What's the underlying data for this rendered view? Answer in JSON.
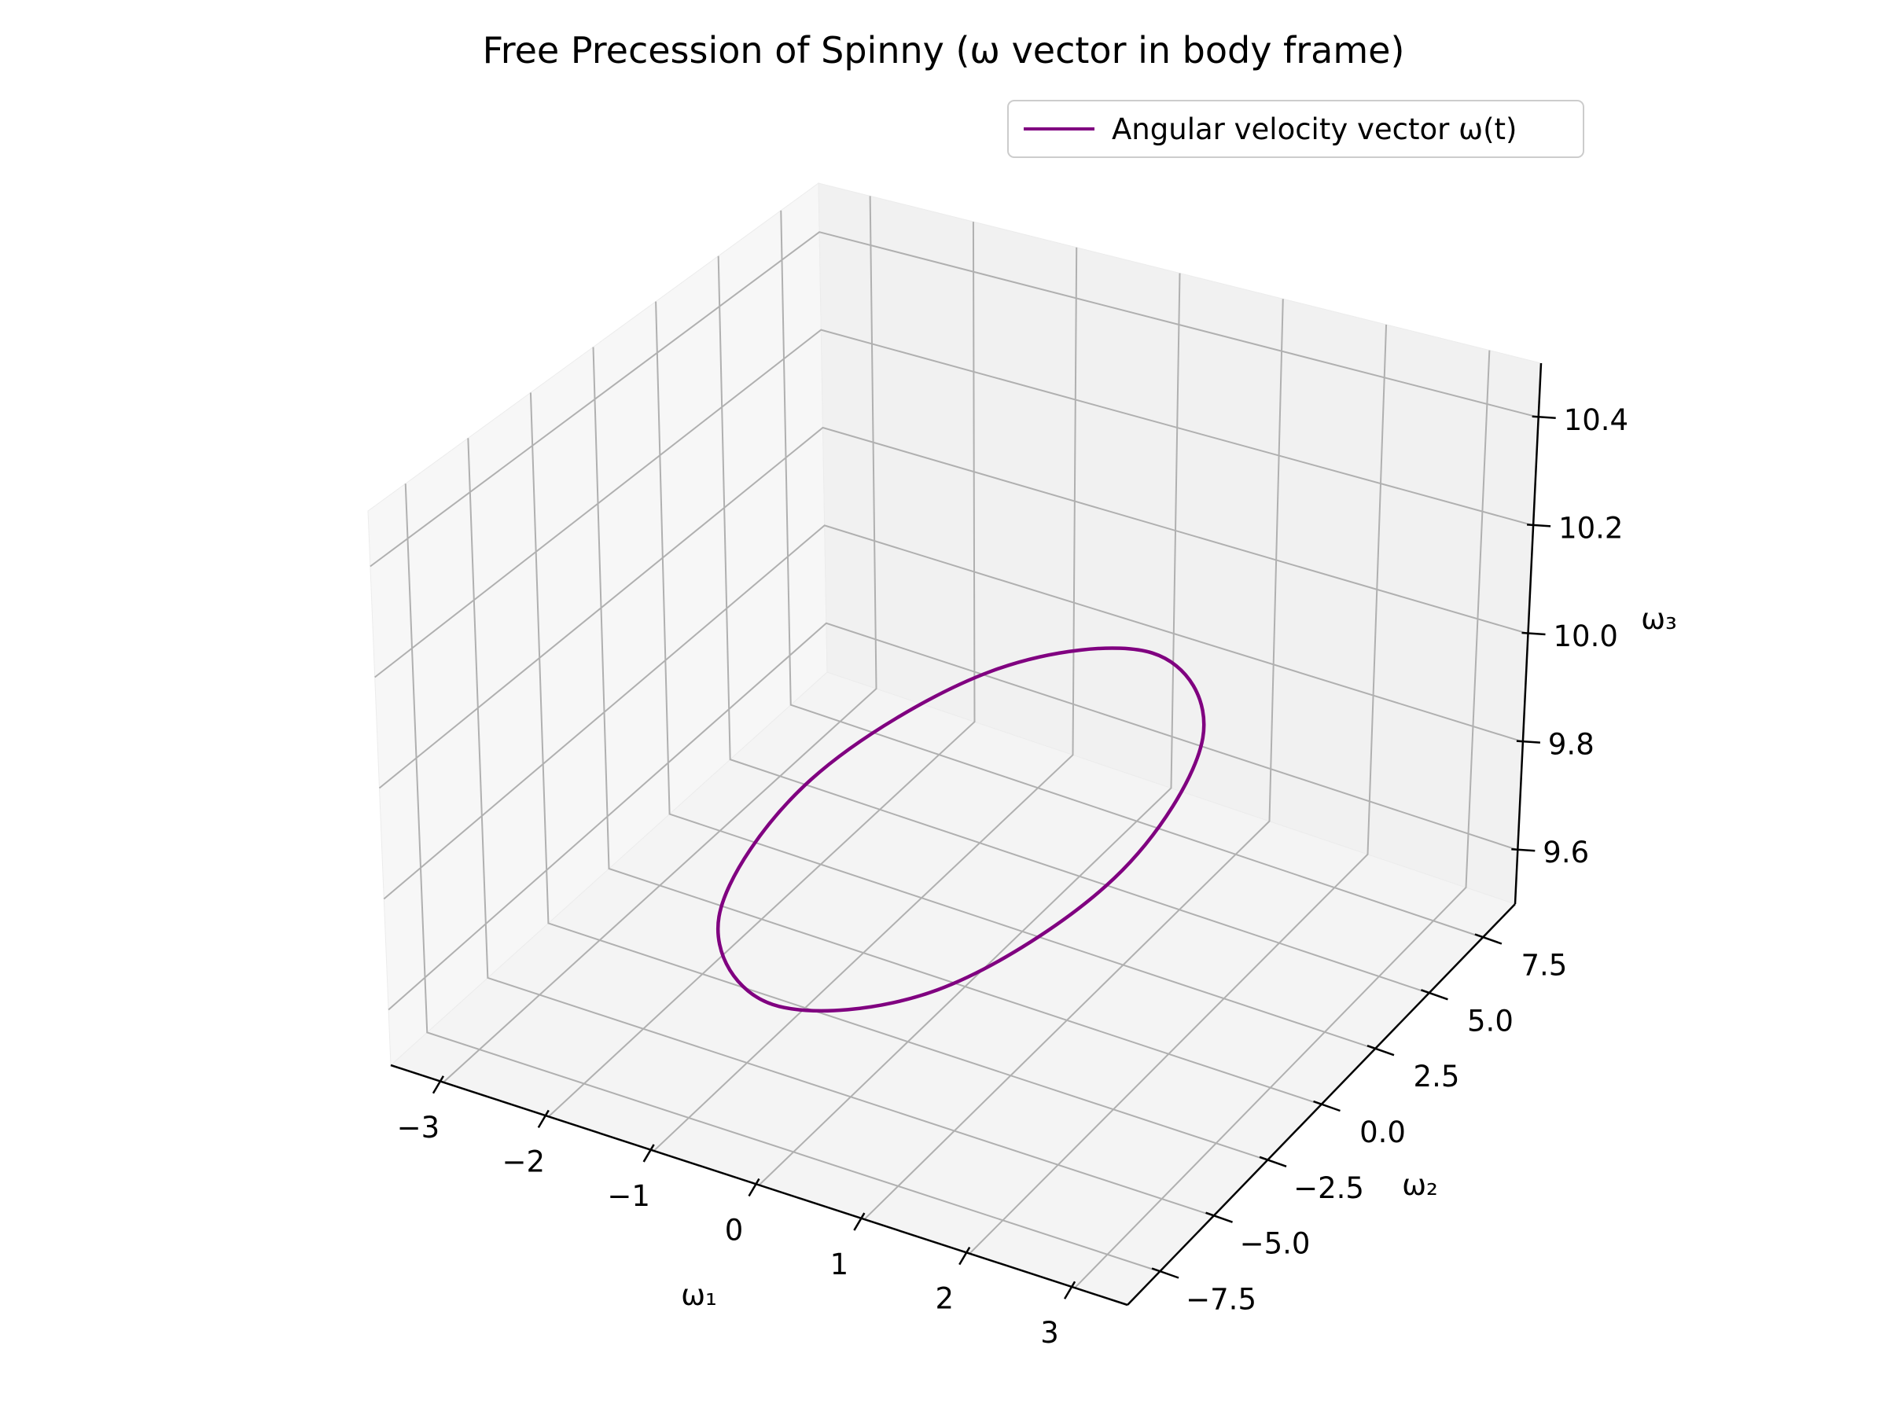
{
  "chart_data": {
    "type": "line",
    "projection": "3d",
    "title": "Free Precession of Spinny (ω vector in body frame)",
    "xlabel": "ω₁",
    "ylabel": "ω₂",
    "zlabel": "ω₃",
    "xticks": [
      "−3",
      "−2",
      "−1",
      "0",
      "1",
      "2",
      "3"
    ],
    "yticks": [
      "−7.5",
      "−5.0",
      "−2.5",
      "0.0",
      "2.5",
      "5.0",
      "7.5"
    ],
    "zticks": [
      "9.6",
      "9.8",
      "10.0",
      "10.2",
      "10.4"
    ],
    "xlim": [
      -3.5,
      3.5
    ],
    "ylim": [
      -9,
      9
    ],
    "zlim": [
      9.5,
      10.5
    ],
    "grid": true,
    "legend": {
      "position": "top-right"
    },
    "series": [
      {
        "name": "Angular velocity vector ω(t)",
        "color": "#800080",
        "curve": "closed ellipse (free precession)",
        "points": [
          {
            "x": 0.0,
            "y": -8.1,
            "z": 9.8
          },
          {
            "x": 1.05,
            "y": -5.73,
            "z": 9.8
          },
          {
            "x": 1.48,
            "y": 0.0,
            "z": 9.8
          },
          {
            "x": 1.05,
            "y": 5.73,
            "z": 9.8
          },
          {
            "x": 0.0,
            "y": 8.1,
            "z": 9.8
          },
          {
            "x": -1.05,
            "y": 5.73,
            "z": 9.8
          },
          {
            "x": -1.48,
            "y": 0.0,
            "z": 9.8
          },
          {
            "x": -1.05,
            "y": -5.73,
            "z": 9.8
          }
        ]
      }
    ]
  }
}
